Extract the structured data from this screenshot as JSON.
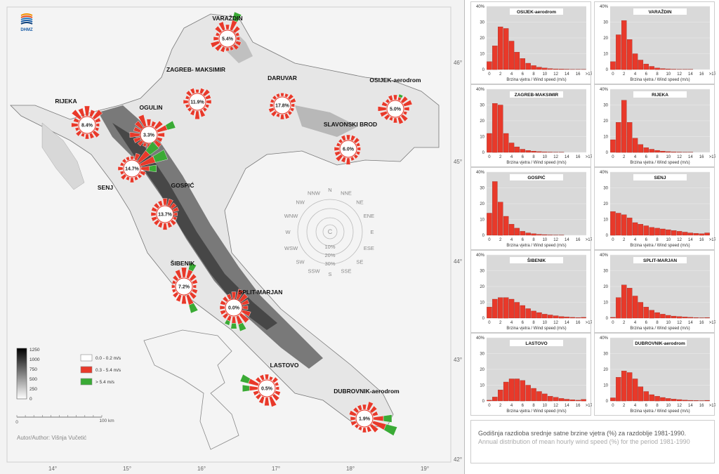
{
  "logo": "DHMZ",
  "author": "Autor/Author: Višnja Vučetić",
  "scale_bar": {
    "left": "0",
    "right": "100 km"
  },
  "longitude_ticks": [
    "14°",
    "15°",
    "16°",
    "17°",
    "18°",
    "19°"
  ],
  "latitude_ticks": [
    "46°",
    "45°",
    "44°",
    "43°",
    "42°"
  ],
  "elevation_legend": [
    "1250",
    "1000",
    "750",
    "500",
    "250",
    "0"
  ],
  "wind_legend": [
    {
      "label": "0.0 - 0.2 m/s",
      "color": "#ffffff"
    },
    {
      "label": "0.3 - 5.4 m/s",
      "color": "#e8392a"
    },
    {
      "label": "> 5.4 m/s",
      "color": "#3aaa35"
    }
  ],
  "compass": {
    "directions": [
      "N",
      "NNE",
      "NE",
      "ENE",
      "E",
      "ESE",
      "SE",
      "SSE",
      "S",
      "SSW",
      "SW",
      "WSW",
      "W",
      "WNW",
      "NW",
      "NNW"
    ],
    "center": "C",
    "rings": [
      "10%",
      "20%",
      "30%"
    ]
  },
  "stations_map": [
    {
      "name": "VARAŽDIN",
      "calm": "5.4%"
    },
    {
      "name": "ZAGREB- MAKSIMIR",
      "calm": "11.9%"
    },
    {
      "name": "DARUVAR",
      "calm": "17.8%"
    },
    {
      "name": "OSIJEK-aerodrom",
      "calm": "5.0%"
    },
    {
      "name": "RIJEKA",
      "calm": "8.4%"
    },
    {
      "name": "OGULIN",
      "calm": "3.3%"
    },
    {
      "name": "SLAVONSKI BROD",
      "calm": "6.0%"
    },
    {
      "name": "SENJ",
      "calm": "14.7%"
    },
    {
      "name": "GOSPIĆ",
      "calm": "13.7%"
    },
    {
      "name": "ŠIBENIK",
      "calm": "7.2%"
    },
    {
      "name": "SPLIT-MARJAN",
      "calm": "0.0%"
    },
    {
      "name": "LASTOVO",
      "calm": "0.5%"
    },
    {
      "name": "DUBROVNIK-aerodrom",
      "calm": "1.9%"
    }
  ],
  "caption": {
    "hr": "Godišnja razdioba srednje satne brzine vjetra (%) za razdoblje 1981-1990.",
    "en": "Annual distribution of mean hourly wind speed (%) for the period 1981-1990"
  },
  "chart_data": {
    "type": "bar",
    "categories": [
      "0",
      "1",
      "2",
      "3",
      "4",
      "5",
      "6",
      "7",
      "8",
      "9",
      "10",
      "11",
      "12",
      "13",
      "14",
      "15",
      "16",
      ">17"
    ],
    "x_tick_labels": [
      "0",
      "2",
      "4",
      "6",
      "8",
      "10",
      "12",
      "14",
      "16",
      ">17"
    ],
    "y_tick_labels": [
      "0",
      "10",
      "20",
      "30",
      "40%"
    ],
    "xlabel": "Brzina vjetra / Wind speed (m/s)",
    "ylim": [
      0,
      40
    ],
    "bar_color": "#e8392a",
    "series": [
      {
        "name": "OSIJEK-aerodrom",
        "values": [
          5,
          15,
          27,
          26,
          18,
          11,
          7,
          4,
          2.5,
          1.5,
          1,
          0.6,
          0.4,
          0.3,
          0.2,
          0.1,
          0.1,
          0.1
        ]
      },
      {
        "name": "VARAŽDIN",
        "values": [
          5,
          22,
          31,
          19,
          10,
          6,
          3.5,
          2,
          1,
          0.6,
          0.4,
          0.2,
          0.1,
          0.1,
          0.1,
          0,
          0,
          0
        ]
      },
      {
        "name": "ZAGREB-MAKSIMIR",
        "values": [
          12,
          31,
          30,
          12,
          6,
          3.5,
          2,
          1.2,
          0.8,
          0.5,
          0.3,
          0.2,
          0.1,
          0.1,
          0,
          0,
          0,
          0
        ]
      },
      {
        "name": "RIJEKA",
        "values": [
          8,
          19,
          33,
          19,
          9,
          5,
          3,
          2,
          1.3,
          0.8,
          0.5,
          0.3,
          0.2,
          0.1,
          0.1,
          0,
          0,
          0
        ]
      },
      {
        "name": "GOSPIĆ",
        "values": [
          14,
          34,
          21,
          12,
          7,
          4.5,
          2.5,
          1.5,
          1,
          0.6,
          0.4,
          0.2,
          0.1,
          0.1,
          0,
          0,
          0,
          0
        ]
      },
      {
        "name": "SENJ",
        "values": [
          15,
          14,
          13,
          11,
          8,
          7,
          6,
          5,
          4.5,
          4,
          3.5,
          3,
          2.5,
          2,
          1.5,
          1.2,
          1,
          1.5
        ]
      },
      {
        "name": "ŠIBENIK",
        "values": [
          7,
          12,
          13,
          13,
          12,
          10,
          8,
          6,
          4.5,
          3.5,
          2.5,
          2,
          1.5,
          1,
          0.7,
          0.5,
          0.3,
          0.5
        ]
      },
      {
        "name": "SPLIT-MARJAN",
        "values": [
          0.5,
          13,
          21,
          19,
          14,
          10,
          7,
          5,
          3.5,
          2.5,
          1.8,
          1.3,
          1,
          0.7,
          0.5,
          0.3,
          0.2,
          0.3
        ]
      },
      {
        "name": "LASTOVO",
        "values": [
          0.5,
          2.5,
          7,
          12,
          14,
          14,
          13,
          10,
          8,
          6,
          4.5,
          3,
          2.3,
          1.6,
          1.1,
          0.8,
          0.5,
          1
        ]
      },
      {
        "name": "DUBROVNIK-aerodrom",
        "values": [
          2,
          15,
          19,
          18,
          14,
          9,
          6,
          4,
          3,
          2.2,
          1.6,
          1.2,
          0.9,
          0.6,
          0.4,
          0.3,
          0.2,
          0.4
        ]
      }
    ]
  }
}
